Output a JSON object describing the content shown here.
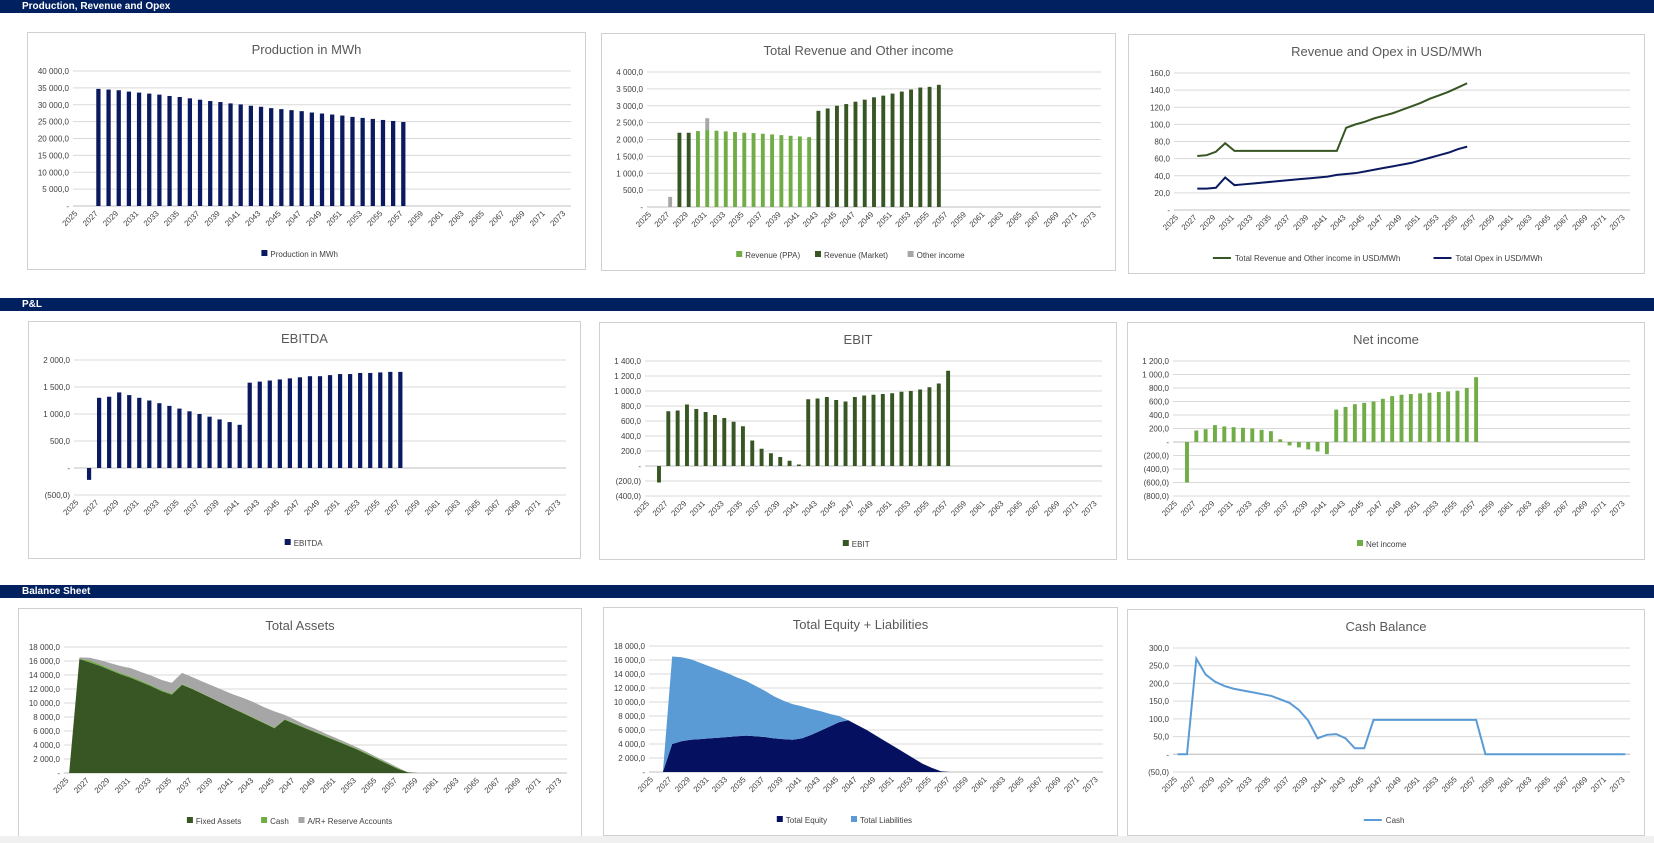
{
  "sections": [
    "Production, Revenue and Opex",
    "P&L",
    "Balance Sheet"
  ],
  "x_tick_labels": [
    "2025",
    "2027",
    "2029",
    "2031",
    "2033",
    "2035",
    "2037",
    "2039",
    "2041",
    "2043",
    "2045",
    "2047",
    "2049",
    "2051",
    "2053",
    "2055",
    "2057",
    "2059",
    "2061",
    "2063",
    "2065",
    "2067",
    "2069",
    "2071",
    "2073"
  ],
  "colors": {
    "navy": "#0b1a60",
    "dark_green": "#375623",
    "light_green": "#70ad47",
    "gray": "#a6a6a6",
    "mid_green": "#4e7f2c",
    "sky": "#5b9bd5",
    "equity": "#061060",
    "band": "#002060"
  },
  "chart_data": [
    {
      "id": "production",
      "type": "bar",
      "title": "Production in MWh",
      "y_ticks": [
        "40 000,0",
        "35 000,0",
        "30 000,0",
        "25 000,0",
        "20 000,0",
        "15 000,0",
        "10 000,0",
        "5 000,0",
        "-"
      ],
      "ylim": [
        0,
        40000
      ],
      "x_start": 2025,
      "x_end": 2073,
      "series": [
        {
          "name": "Production in MWh",
          "color": "#0b1a60",
          "x_start": 2027,
          "values": [
            34700,
            34500,
            34300,
            33900,
            33600,
            33300,
            33000,
            32600,
            32300,
            31900,
            31500,
            31100,
            30800,
            30400,
            30100,
            29700,
            29400,
            29000,
            28700,
            28400,
            28100,
            27700,
            27400,
            27100,
            26800,
            26400,
            26100,
            25800,
            25500,
            25200,
            24900
          ]
        }
      ],
      "legend": [
        "Production in MWh"
      ]
    },
    {
      "id": "revenue",
      "type": "bar",
      "stacked": true,
      "title": "Total Revenue and Other income",
      "y_ticks": [
        "4 000,0",
        "3 500,0",
        "3 000,0",
        "2 500,0",
        "2 000,0",
        "1 500,0",
        "1 000,0",
        "500,0",
        "-"
      ],
      "ylim": [
        0,
        4000
      ],
      "x_start": 2025,
      "x_end": 2073,
      "series": [
        {
          "name": "Revenue (PPA)",
          "color": "#70ad47",
          "x_start": 2027,
          "values": [
            0,
            0,
            0,
            2250,
            2280,
            2260,
            2240,
            2220,
            2200,
            2190,
            2170,
            2150,
            2130,
            2110,
            2090,
            2070,
            0,
            0,
            0,
            0,
            0,
            0,
            0,
            0,
            0,
            0,
            0,
            0,
            0,
            0,
            0
          ]
        },
        {
          "name": "Revenue (Market)",
          "color": "#375623",
          "x_start": 2027,
          "values": [
            0,
            2200,
            2200,
            0,
            0,
            0,
            0,
            0,
            0,
            0,
            0,
            0,
            0,
            0,
            0,
            0,
            2850,
            2920,
            3000,
            3050,
            3120,
            3180,
            3250,
            3300,
            3360,
            3420,
            3480,
            3540,
            3560,
            3620,
            0
          ]
        },
        {
          "name": "Other income",
          "color": "#a6a6a6",
          "x_start": 2027,
          "values": [
            300,
            0,
            0,
            0,
            350,
            0,
            0,
            0,
            0,
            0,
            0,
            0,
            0,
            0,
            0,
            0,
            0,
            0,
            0,
            0,
            0,
            0,
            0,
            0,
            0,
            0,
            0,
            0,
            0,
            0,
            0
          ]
        }
      ],
      "legend": [
        "Revenue (PPA)",
        "Revenue (Market)",
        "Other income"
      ]
    },
    {
      "id": "usd_mwh",
      "type": "line",
      "title": "Revenue and Opex in USD/MWh",
      "y_ticks": [
        "160,0",
        "140,0",
        "120,0",
        "100,0",
        "80,0",
        "60,0",
        "40,0",
        "20,0",
        "-"
      ],
      "ylim": [
        0,
        160
      ],
      "x_start": 2025,
      "x_end": 2073,
      "series": [
        {
          "name": "Total Revenue and Other income in USD/MWh",
          "color": "#375623",
          "x_start": 2027,
          "values": [
            63,
            64,
            68,
            78,
            69,
            69,
            69,
            69,
            69,
            69,
            69,
            69,
            69,
            69,
            69,
            69,
            96,
            100,
            103,
            107,
            110,
            113,
            117,
            121,
            125,
            130,
            134,
            138,
            143,
            148
          ]
        },
        {
          "name": "Total Opex in USD/MWh",
          "color": "#0b1a60",
          "x_start": 2027,
          "values": [
            25,
            25,
            26,
            38,
            29,
            30,
            31,
            32,
            33,
            34,
            35,
            36,
            37,
            38,
            39,
            41,
            42,
            43,
            45,
            47,
            49,
            51,
            53,
            55,
            58,
            61,
            64,
            67,
            71,
            74
          ]
        }
      ],
      "legend": [
        "Total Revenue and Other income in USD/MWh",
        "Total Opex in USD/MWh"
      ]
    },
    {
      "id": "ebitda",
      "type": "bar",
      "title": "EBITDA",
      "y_ticks": [
        "2 000,0",
        "1 500,0",
        "1 000,0",
        "500,0",
        "-",
        "(500,0)"
      ],
      "ylim": [
        -500,
        2000
      ],
      "x_start": 2025,
      "x_end": 2073,
      "series": [
        {
          "name": "EBITDA",
          "color": "#0b1a60",
          "x_start": 2026,
          "values": [
            -220,
            1300,
            1320,
            1400,
            1350,
            1300,
            1250,
            1200,
            1150,
            1100,
            1050,
            1000,
            950,
            900,
            850,
            800,
            1580,
            1600,
            1620,
            1640,
            1660,
            1680,
            1700,
            1700,
            1720,
            1740,
            1740,
            1760,
            1760,
            1770,
            1780,
            1780
          ]
        }
      ],
      "legend": [
        "EBITDA"
      ]
    },
    {
      "id": "ebit",
      "type": "bar",
      "title": "EBIT",
      "y_ticks": [
        "1 400,0",
        "1 200,0",
        "1 000,0",
        "800,0",
        "600,0",
        "400,0",
        "200,0",
        "-",
        "(200,0)",
        "(400,0)"
      ],
      "ylim": [
        -400,
        1400
      ],
      "x_start": 2025,
      "x_end": 2073,
      "series": [
        {
          "name": "EBIT",
          "color": "#375623",
          "x_start": 2026,
          "values": [
            -220,
            730,
            740,
            820,
            760,
            720,
            680,
            640,
            590,
            530,
            340,
            230,
            170,
            120,
            70,
            20,
            890,
            900,
            920,
            880,
            860,
            920,
            940,
            950,
            960,
            970,
            990,
            1000,
            1020,
            1050,
            1100,
            1270
          ]
        }
      ],
      "legend": [
        "EBIT"
      ]
    },
    {
      "id": "net_income",
      "type": "bar",
      "title": "Net income",
      "y_ticks": [
        "1 200,0",
        "1 000,0",
        "800,0",
        "600,0",
        "400,0",
        "200,0",
        "-",
        "(200,0)",
        "(400,0)",
        "(600,0)",
        "(800,0)"
      ],
      "ylim": [
        -800,
        1200
      ],
      "x_start": 2025,
      "x_end": 2073,
      "series": [
        {
          "name": "Net income",
          "color": "#70ad47",
          "x_start": 2026,
          "values": [
            -600,
            170,
            190,
            250,
            230,
            220,
            210,
            200,
            180,
            160,
            40,
            -50,
            -80,
            -110,
            -140,
            -180,
            480,
            520,
            560,
            580,
            600,
            640,
            680,
            700,
            710,
            720,
            730,
            740,
            750,
            760,
            800,
            960
          ]
        }
      ],
      "legend": [
        "Net income"
      ]
    },
    {
      "id": "total_assets",
      "type": "area",
      "stacked": true,
      "title": "Total Assets",
      "y_ticks": [
        "18 000,0",
        "16 000,0",
        "14 000,0",
        "12 000,0",
        "10 000,0",
        "8 000,0",
        "6 000,0",
        "4 000,0",
        "2 000,0",
        "-"
      ],
      "ylim": [
        0,
        18000
      ],
      "x_start": 2025,
      "x_end": 2073,
      "series": [
        {
          "name": "Fixed Assets",
          "color": "#375623",
          "x_start": 2025,
          "values": [
            0,
            16300,
            15800,
            15300,
            14700,
            14100,
            13600,
            13000,
            12400,
            11700,
            11200,
            12600,
            12000,
            11300,
            10600,
            9900,
            9200,
            8500,
            7800,
            7100,
            6400,
            7600,
            7000,
            6400,
            5800,
            5200,
            4600,
            4000,
            3400,
            2700,
            2000,
            1300,
            600,
            100,
            0
          ]
        },
        {
          "name": "Cash",
          "color": "#70ad47",
          "x_start": 2025,
          "values": [
            0,
            10,
            270,
            220,
            200,
            190,
            180,
            170,
            160,
            150,
            130,
            100,
            50,
            60,
            40,
            20,
            20,
            100,
            100,
            100,
            100,
            100,
            100,
            100,
            100,
            100,
            100,
            100,
            100,
            100,
            100,
            100,
            100,
            0,
            0
          ]
        },
        {
          "name": "A/R+ Reserve Accounts",
          "color": "#a6a6a6",
          "x_start": 2025,
          "values": [
            0,
            200,
            400,
            600,
            800,
            1000,
            1200,
            1250,
            1350,
            1450,
            1550,
            1600,
            1650,
            1700,
            1800,
            1900,
            2000,
            2100,
            2200,
            2200,
            2300,
            600,
            500,
            400,
            400,
            300,
            300,
            250,
            200,
            200,
            150,
            150,
            100,
            0,
            0
          ]
        }
      ],
      "legend": [
        "Fixed Assets",
        "Cash",
        "A/R+ Reserve Accounts"
      ]
    },
    {
      "id": "equity_liabilities",
      "type": "area",
      "stacked": true,
      "title": "Total Equity + Liabilities",
      "y_ticks": [
        "18 000,0",
        "16 000,0",
        "14 000,0",
        "12 000,0",
        "10 000,0",
        "8 000,0",
        "6 000,0",
        "4 000,0",
        "2 000,0",
        "-"
      ],
      "ylim": [
        0,
        18000
      ],
      "x_start": 2025,
      "x_end": 2073,
      "series": [
        {
          "name": "Total Equity",
          "color": "#061060",
          "x_start": 2026,
          "values": [
            0,
            4000,
            4400,
            4600,
            4700,
            4800,
            4900,
            5000,
            5100,
            5200,
            5100,
            5000,
            4800,
            4700,
            4600,
            4800,
            5300,
            5900,
            6500,
            7100,
            7400,
            6700,
            6000,
            5200,
            4400,
            3600,
            2800,
            2000,
            1200,
            600,
            100,
            0
          ]
        },
        {
          "name": "Total Liabilities",
          "color": "#5b9bd5",
          "x_start": 2026,
          "values": [
            0,
            12500,
            12000,
            11500,
            10900,
            10300,
            9700,
            9100,
            8400,
            7800,
            7200,
            6600,
            6000,
            5500,
            5100,
            4600,
            3700,
            2800,
            1800,
            900,
            0,
            0,
            0,
            0,
            0,
            0,
            0,
            0,
            0,
            0,
            0,
            0
          ]
        }
      ],
      "legend": [
        "Total Equity",
        "Total Liabilities"
      ]
    },
    {
      "id": "cash_balance",
      "type": "line",
      "title": "Cash Balance",
      "y_ticks": [
        "300,0",
        "250,0",
        "200,0",
        "150,0",
        "100,0",
        "50,0",
        "-",
        "(50,0)"
      ],
      "ylim": [
        -50,
        300
      ],
      "x_start": 2025,
      "x_end": 2073,
      "series": [
        {
          "name": "Cash",
          "color": "#5b9bd5",
          "x_start": 2025,
          "values": [
            0,
            0,
            270,
            225,
            205,
            193,
            185,
            180,
            175,
            170,
            165,
            155,
            145,
            125,
            95,
            45,
            55,
            57,
            45,
            17,
            17,
            97,
            97,
            97,
            97,
            97,
            97,
            97,
            97,
            97,
            97,
            97,
            97,
            0,
            0,
            0,
            0,
            0,
            0,
            0,
            0,
            0,
            0,
            0,
            0,
            0,
            0,
            0,
            0
          ]
        }
      ],
      "legend": [
        "Cash"
      ]
    }
  ]
}
